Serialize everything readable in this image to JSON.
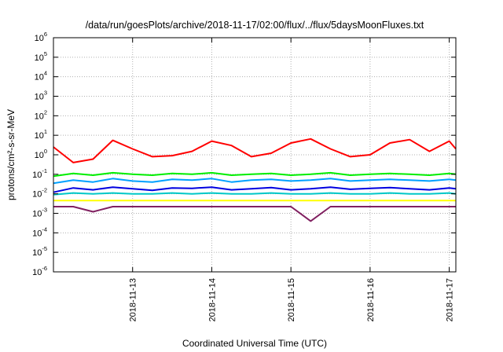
{
  "chart_data": {
    "type": "line",
    "title": "/data/run/goesPlots/archive/2018-11-17/02:00/flux/../flux/5daysMoonFluxes.txt",
    "xlabel": "Coordinated Universal Time (UTC)",
    "ylabel": "protons/cm²-s-sr-MeV",
    "y_scale": "log",
    "ylim": [
      1e-06,
      1000000.0
    ],
    "xlim": [
      "2018-11-12 00:00",
      "2018-11-17 02:00"
    ],
    "x_ticks": [
      "2018-11-13",
      "2018-11-14",
      "2018-11-15",
      "2018-11-16",
      "2018-11-17"
    ],
    "y_ticks": [
      {
        "base": "10",
        "exp": "-6"
      },
      {
        "base": "10",
        "exp": "-5"
      },
      {
        "base": "10",
        "exp": "-4"
      },
      {
        "base": "10",
        "exp": "-3"
      },
      {
        "base": "10",
        "exp": "-2"
      },
      {
        "base": "10",
        "exp": "-1"
      },
      {
        "base": "10",
        "exp": "0"
      },
      {
        "base": "10",
        "exp": "1"
      },
      {
        "base": "10",
        "exp": "2"
      },
      {
        "base": "10",
        "exp": "3"
      },
      {
        "base": "10",
        "exp": "4"
      },
      {
        "base": "10",
        "exp": "5"
      },
      {
        "base": "10",
        "exp": "6"
      }
    ],
    "grid": true,
    "x": [
      "2018-11-12 00:00",
      "2018-11-12 06:00",
      "2018-11-12 12:00",
      "2018-11-12 18:00",
      "2018-11-13 00:00",
      "2018-11-13 06:00",
      "2018-11-13 12:00",
      "2018-11-13 18:00",
      "2018-11-14 00:00",
      "2018-11-14 06:00",
      "2018-11-14 12:00",
      "2018-11-14 18:00",
      "2018-11-15 00:00",
      "2018-11-15 06:00",
      "2018-11-15 12:00",
      "2018-11-15 18:00",
      "2018-11-16 00:00",
      "2018-11-16 06:00",
      "2018-11-16 12:00",
      "2018-11-16 18:00",
      "2018-11-17 00:00",
      "2018-11-17 02:00"
    ],
    "series": [
      {
        "color": "#ff0000",
        "values": [
          2.5,
          0.4,
          0.6,
          5.5,
          2.0,
          0.8,
          0.9,
          1.5,
          5.0,
          3.0,
          0.8,
          1.2,
          4.0,
          6.5,
          2.0,
          0.8,
          1.0,
          4.0,
          6.0,
          1.5,
          5.0,
          2.0
        ]
      },
      {
        "color": "#00ee00",
        "values": [
          0.08,
          0.11,
          0.09,
          0.12,
          0.1,
          0.09,
          0.11,
          0.1,
          0.12,
          0.09,
          0.1,
          0.11,
          0.09,
          0.1,
          0.12,
          0.09,
          0.1,
          0.11,
          0.1,
          0.09,
          0.11,
          0.1
        ]
      },
      {
        "color": "#00a0ff",
        "values": [
          0.035,
          0.05,
          0.04,
          0.06,
          0.045,
          0.04,
          0.055,
          0.05,
          0.06,
          0.04,
          0.05,
          0.055,
          0.045,
          0.05,
          0.06,
          0.045,
          0.05,
          0.055,
          0.05,
          0.045,
          0.055,
          0.05
        ]
      },
      {
        "color": "#0000e0",
        "values": [
          0.012,
          0.02,
          0.016,
          0.022,
          0.018,
          0.015,
          0.02,
          0.019,
          0.022,
          0.016,
          0.018,
          0.021,
          0.016,
          0.018,
          0.022,
          0.017,
          0.019,
          0.021,
          0.018,
          0.016,
          0.02,
          0.018
        ]
      },
      {
        "color": "#00c8c8",
        "values": [
          0.009,
          0.011,
          0.01,
          0.011,
          0.01,
          0.01,
          0.011,
          0.01,
          0.011,
          0.01,
          0.01,
          0.011,
          0.01,
          0.01,
          0.011,
          0.01,
          0.01,
          0.011,
          0.01,
          0.01,
          0.011,
          0.01
        ]
      },
      {
        "color": "#ffff00",
        "values": [
          0.0045,
          0.0045,
          0.0045,
          0.0045,
          0.0045,
          0.0045,
          0.0045,
          0.0045,
          0.0045,
          0.0045,
          0.0045,
          0.0045,
          0.0045,
          0.0045,
          0.0045,
          0.0045,
          0.0045,
          0.0045,
          0.0045,
          0.0045,
          0.0045,
          0.0045
        ]
      },
      {
        "color": "#802060",
        "values": [
          0.0022,
          0.0022,
          0.0012,
          0.0022,
          0.0022,
          0.0022,
          0.0022,
          0.0022,
          0.0022,
          0.0022,
          0.0022,
          0.0022,
          0.0022,
          0.0004,
          0.0022,
          0.0022,
          0.0022,
          0.0022,
          0.0022,
          0.0022,
          0.0022,
          0.0022
        ]
      }
    ]
  }
}
